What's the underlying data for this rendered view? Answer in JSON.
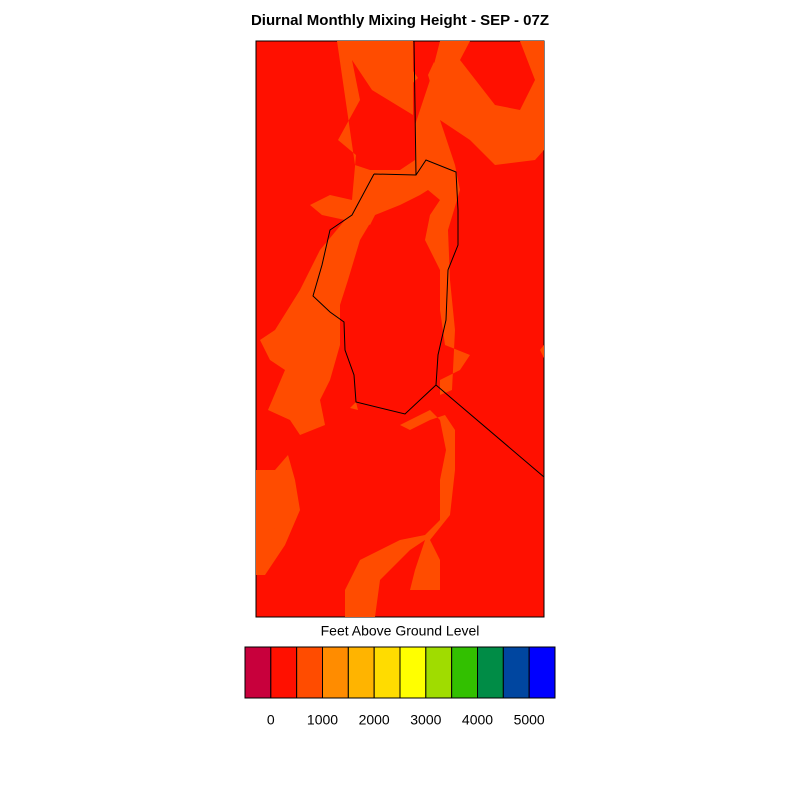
{
  "title": "Diurnal Monthly Mixing Height - SEP - 07Z",
  "colorbar": {
    "label": "Feet Above Ground Level",
    "colors": [
      "#c8003c",
      "#ff1000",
      "#ff4c00",
      "#ff8c00",
      "#ffb400",
      "#ffdc00",
      "#ffff00",
      "#a0dc00",
      "#32c000",
      "#008c46",
      "#0046a0",
      "#0000ff"
    ],
    "levels": [
      0,
      500,
      1000,
      1500,
      2000,
      2500,
      3000,
      3500,
      4000,
      4500,
      5000
    ],
    "ticks": [
      0,
      1000,
      2000,
      3000,
      4000,
      5000
    ]
  }
}
